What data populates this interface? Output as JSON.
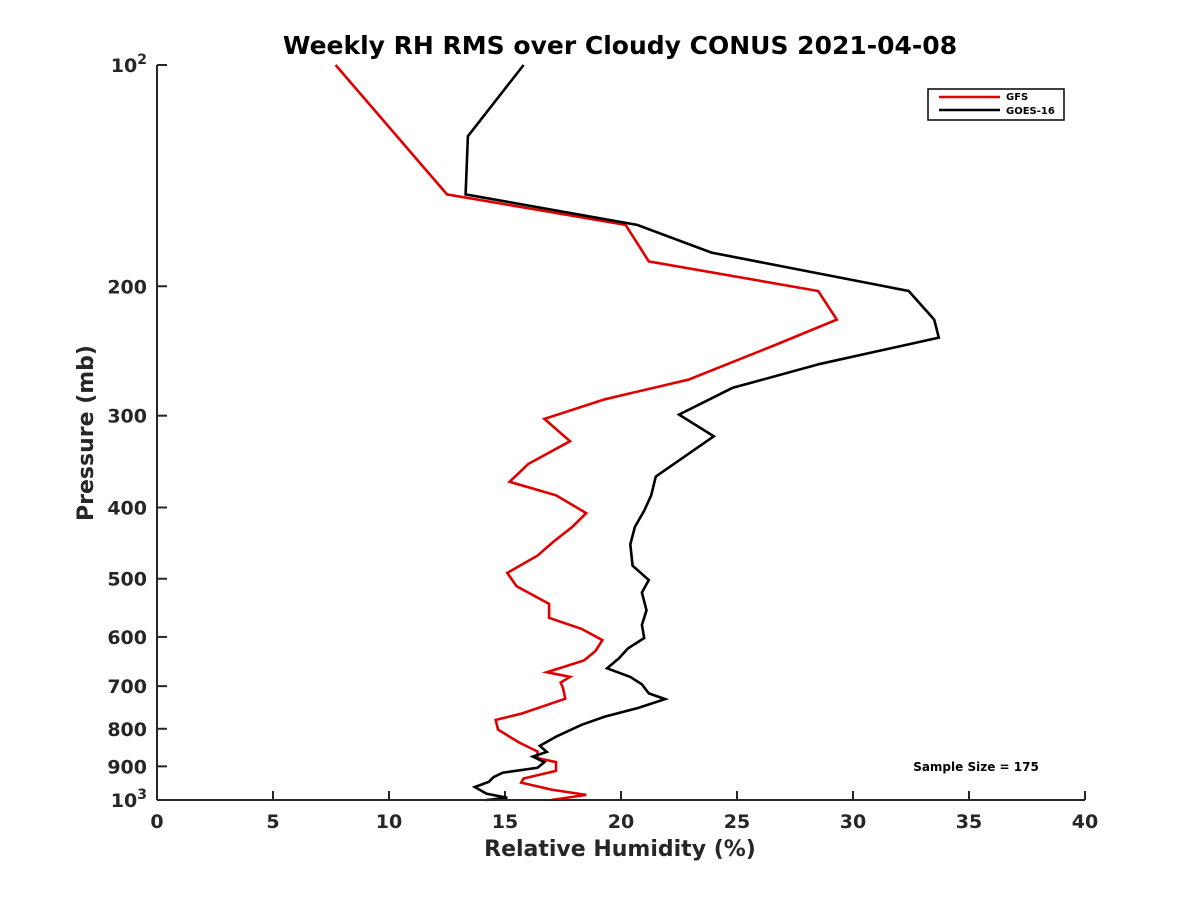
{
  "chart_data": {
    "type": "line",
    "title": "Weekly RH RMS over Cloudy CONUS 2021-04-08",
    "xlabel": "Relative Humidity (%)",
    "ylabel": "Pressure (mb)",
    "xlim": [
      0,
      40
    ],
    "ylim": [
      100,
      1000
    ],
    "y_scale": "log",
    "y_reversed": true,
    "grid": false,
    "legend_position": "top-right",
    "x_ticks": [
      "0",
      "5",
      "10",
      "15",
      "20",
      "25",
      "30",
      "35",
      "40"
    ],
    "y_ticks": [
      {
        "value": 100,
        "label": "10",
        "sup": "2"
      },
      {
        "value": 200,
        "label": "200",
        "sup": ""
      },
      {
        "value": 300,
        "label": "300",
        "sup": ""
      },
      {
        "value": 400,
        "label": "400",
        "sup": ""
      },
      {
        "value": 500,
        "label": "500",
        "sup": ""
      },
      {
        "value": 600,
        "label": "600",
        "sup": ""
      },
      {
        "value": 700,
        "label": "700",
        "sup": ""
      },
      {
        "value": 800,
        "label": "800",
        "sup": ""
      },
      {
        "value": 900,
        "label": "900",
        "sup": ""
      },
      {
        "value": 1000,
        "label": "10",
        "sup": "3"
      }
    ],
    "annotation": "Sample Size = 175",
    "series": [
      {
        "name": "GFS",
        "color": "#e00000",
        "points": [
          [
            7.7,
            100
          ],
          [
            12.5,
            150
          ],
          [
            20.2,
            165
          ],
          [
            21.2,
            185
          ],
          [
            28.5,
            203
          ],
          [
            29.3,
            222
          ],
          [
            26.7,
            240
          ],
          [
            22.9,
            268
          ],
          [
            19.3,
            285
          ],
          [
            16.7,
            303
          ],
          [
            17.8,
            325
          ],
          [
            16.0,
            349
          ],
          [
            15.2,
            369
          ],
          [
            17.2,
            385
          ],
          [
            18.5,
            407
          ],
          [
            17.9,
            425
          ],
          [
            17.1,
            445
          ],
          [
            16.4,
            465
          ],
          [
            15.1,
            491
          ],
          [
            15.5,
            512
          ],
          [
            16.9,
            541
          ],
          [
            16.9,
            565
          ],
          [
            18.3,
            585
          ],
          [
            19.2,
            606
          ],
          [
            18.9,
            627
          ],
          [
            18.4,
            646
          ],
          [
            16.8,
            670
          ],
          [
            17.8,
            680
          ],
          [
            17.4,
            692
          ],
          [
            17.5,
            704
          ],
          [
            17.6,
            728
          ],
          [
            15.7,
            763
          ],
          [
            14.6,
            778
          ],
          [
            14.7,
            802
          ],
          [
            15.6,
            835
          ],
          [
            16.4,
            859
          ],
          [
            16.4,
            877
          ],
          [
            17.2,
            888
          ],
          [
            17.2,
            913
          ],
          [
            15.8,
            935
          ],
          [
            15.7,
            947
          ],
          [
            17.0,
            968
          ],
          [
            18.5,
            984
          ],
          [
            17.0,
            1000
          ]
        ]
      },
      {
        "name": "GOES-16",
        "color": "#000000",
        "points": [
          [
            15.8,
            100
          ],
          [
            13.4,
            125
          ],
          [
            13.3,
            150
          ],
          [
            20.7,
            165
          ],
          [
            23.9,
            180
          ],
          [
            32.4,
            203
          ],
          [
            33.5,
            222
          ],
          [
            33.7,
            235
          ],
          [
            28.6,
            255
          ],
          [
            24.8,
            275
          ],
          [
            22.5,
            299
          ],
          [
            24.0,
            320
          ],
          [
            22.8,
            340
          ],
          [
            21.5,
            363
          ],
          [
            21.3,
            385
          ],
          [
            21.0,
            404
          ],
          [
            20.6,
            425
          ],
          [
            20.4,
            449
          ],
          [
            20.5,
            480
          ],
          [
            21.2,
            502
          ],
          [
            20.9,
            522
          ],
          [
            21.1,
            552
          ],
          [
            20.9,
            578
          ],
          [
            21.0,
            602
          ],
          [
            20.3,
            622
          ],
          [
            19.9,
            642
          ],
          [
            19.4,
            662
          ],
          [
            20.4,
            680
          ],
          [
            20.9,
            696
          ],
          [
            21.2,
            716
          ],
          [
            21.9,
            729
          ],
          [
            20.7,
            750
          ],
          [
            19.3,
            770
          ],
          [
            18.3,
            790
          ],
          [
            17.2,
            820
          ],
          [
            16.5,
            844
          ],
          [
            16.8,
            860
          ],
          [
            16.2,
            873
          ],
          [
            16.7,
            888
          ],
          [
            16.4,
            904
          ],
          [
            14.9,
            918
          ],
          [
            14.5,
            931
          ],
          [
            14.3,
            945
          ],
          [
            13.7,
            960
          ],
          [
            14.2,
            980
          ],
          [
            15.1,
            993
          ],
          [
            14.2,
            1000
          ]
        ]
      }
    ]
  }
}
